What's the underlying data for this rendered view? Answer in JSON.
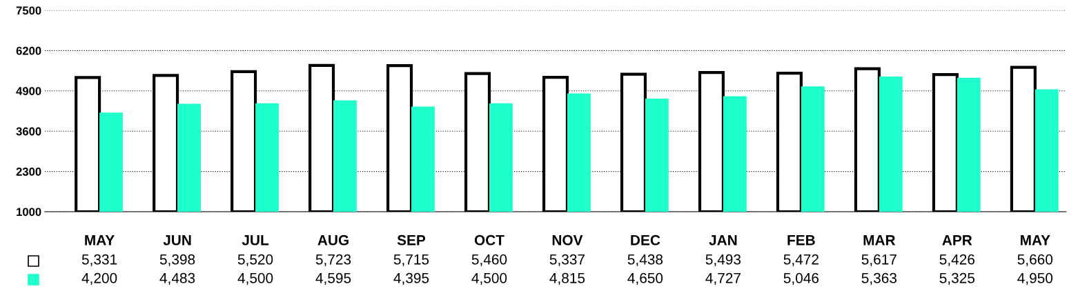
{
  "chart_data": {
    "type": "bar",
    "categories": [
      "MAY",
      "JUN",
      "JUL",
      "AUG",
      "SEP",
      "OCT",
      "NOV",
      "DEC",
      "JAN",
      "FEB",
      "MAR",
      "APR",
      "MAY"
    ],
    "series": [
      {
        "color": "#ffffff",
        "values": [
          5331,
          5398,
          5520,
          5723,
          5715,
          5460,
          5337,
          5438,
          5493,
          5472,
          5617,
          5426,
          5660
        ],
        "value_labels": [
          "5,331",
          "5,398",
          "5,520",
          "5,723",
          "5,715",
          "5,460",
          "5,337",
          "5,438",
          "5,493",
          "5,472",
          "5,617",
          "5,426",
          "5,660"
        ]
      },
      {
        "color": "#1effcc",
        "values": [
          4200,
          4483,
          4500,
          4595,
          4395,
          4500,
          4815,
          4650,
          4727,
          5046,
          5363,
          5325,
          4950
        ],
        "value_labels": [
          "4,200",
          "4,483",
          "4,500",
          "4,595",
          "4,395",
          "4,500",
          "4,815",
          "4,650",
          "4,727",
          "5,046",
          "5,363",
          "5,325",
          "4,950"
        ]
      }
    ],
    "ylim": [
      1000,
      7500
    ],
    "yticks": [
      1000,
      2300,
      3600,
      4900,
      6200,
      7500
    ],
    "grid": "y"
  }
}
